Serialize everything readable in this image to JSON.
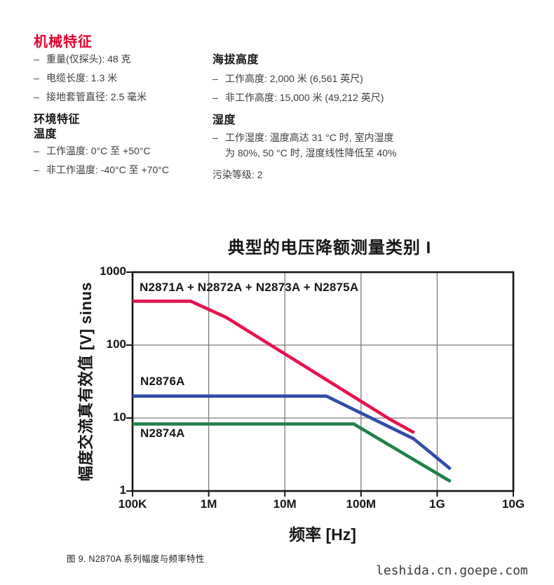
{
  "page": {
    "accent_color": "#e4002d"
  },
  "specs": {
    "bullet_marker": "–",
    "title": "机械特征",
    "left": {
      "mech_bullets": [
        "重量(仅探头): 48 克",
        "电缆长度: 1.3 米",
        "接地套管直径: 2.5 毫米"
      ],
      "env_heading": "环境特征",
      "temp_heading": "温度",
      "temp_bullets": [
        "工作温度: 0°C 至 +50°C",
        "非工作温度: -40°C 至 +70°C"
      ]
    },
    "right": {
      "altitude_heading": "海拔高度",
      "altitude_bullets": [
        "工作高度: 2,000 米 (6,561 英尺)",
        "非工作高度: 15,000 米 (49,212 英尺)"
      ],
      "humidity_heading": "湿度",
      "humidity_line1": "工作湿度: 温度高达 31 °C 时, 室内湿度",
      "humidity_line2": "为 80%, 50 °C 时, 湿度线性降低至 40%",
      "pollution_note": "污染等级: 2"
    }
  },
  "chart_data": {
    "type": "line",
    "title": "典型的电压降额测量类别 I",
    "xlabel": "频率 [Hz]",
    "ylabel": "幅度交流真有效值 [V] sinus",
    "x_scale": "log",
    "y_scale": "log",
    "xlim": [
      100000.0,
      10000000000.0
    ],
    "ylim": [
      1,
      1000
    ],
    "grid": true,
    "grid_color": "#7b7b7b",
    "border_color": "#141414",
    "x_ticks": [
      {
        "value": 100000.0,
        "label": "100K"
      },
      {
        "value": 1000000.0,
        "label": "1M"
      },
      {
        "value": 10000000.0,
        "label": "10M"
      },
      {
        "value": 100000000.0,
        "label": "100M"
      },
      {
        "value": 1000000000.0,
        "label": "1G"
      },
      {
        "value": 10000000000.0,
        "label": "10G"
      }
    ],
    "y_ticks": [
      {
        "value": 1,
        "label": "1"
      },
      {
        "value": 10,
        "label": "10"
      },
      {
        "value": 100,
        "label": "100"
      },
      {
        "value": 1000,
        "label": "1000"
      }
    ],
    "series": [
      {
        "name": "N2871A + N2872A + N2873A + N2875A",
        "color": "#e5134e",
        "points": [
          [
            100000.0,
            400
          ],
          [
            580000.0,
            400
          ],
          [
            1700000.0,
            240
          ],
          [
            240000000.0,
            9.6
          ],
          [
            500000000.0,
            6.3
          ]
        ]
      },
      {
        "name": "N2876A",
        "color": "#2f4da8",
        "points": [
          [
            100000.0,
            20
          ],
          [
            35000000.0,
            20
          ],
          [
            490000000.0,
            5.2
          ],
          [
            1500000000.0,
            2.0
          ]
        ]
      },
      {
        "name": "N2874A",
        "color": "#1e8148",
        "points": [
          [
            100000.0,
            8.3
          ],
          [
            80000000.0,
            8.3
          ],
          [
            1500000000.0,
            1.35
          ]
        ]
      }
    ]
  },
  "figure_caption": "图 9. N2870A 系列幅度与频率特性",
  "watermark": "leshida.cn.goepe.com"
}
